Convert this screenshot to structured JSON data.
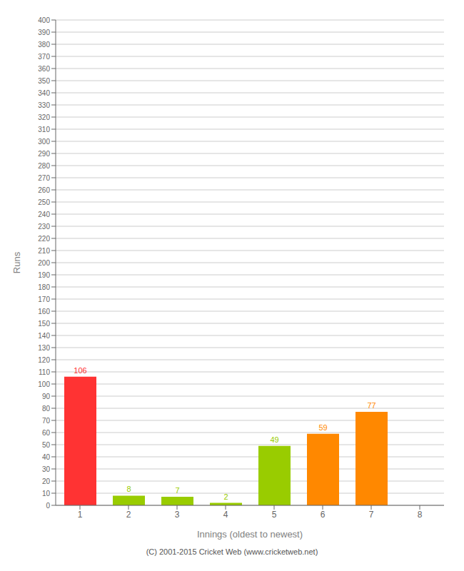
{
  "chart_data": {
    "type": "bar",
    "categories": [
      1,
      2,
      3,
      4,
      5,
      6,
      7,
      8
    ],
    "values": [
      106,
      8,
      7,
      2,
      49,
      59,
      77,
      0
    ],
    "colors": [
      "#ff3333",
      "#99cc00",
      "#99cc00",
      "#99cc00",
      "#99cc00",
      "#ff8800",
      "#ff8800",
      "#ff8800"
    ],
    "xlabel": "Innings (oldest to newest)",
    "ylabel": "Runs",
    "ylim": [
      0,
      400
    ],
    "yticks": [
      0,
      10,
      20,
      30,
      40,
      50,
      60,
      70,
      80,
      90,
      100,
      110,
      120,
      130,
      140,
      150,
      160,
      170,
      180,
      190,
      200,
      210,
      220,
      230,
      240,
      250,
      260,
      270,
      280,
      290,
      300,
      310,
      320,
      330,
      340,
      350,
      360,
      370,
      380,
      390,
      400
    ],
    "grid": true,
    "data_labels": true,
    "footer": "(C) 2001-2015 Cricket Web (www.cricketweb.net)"
  }
}
